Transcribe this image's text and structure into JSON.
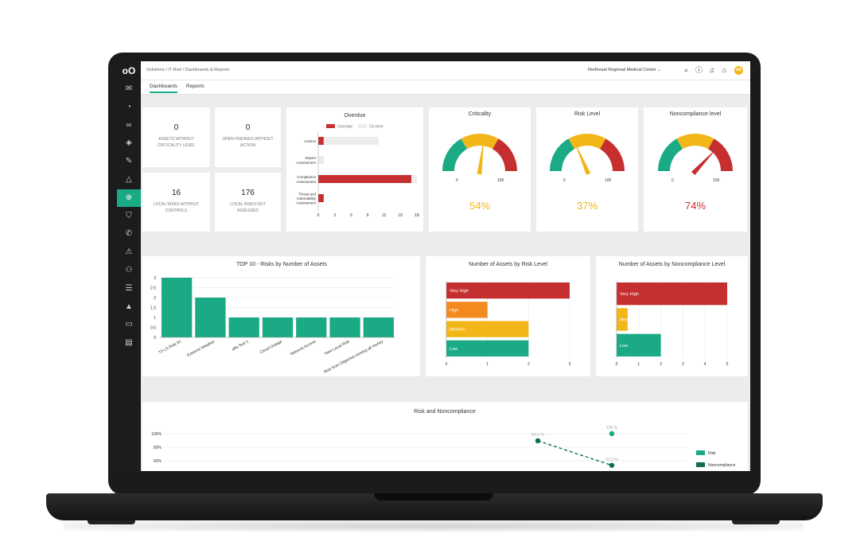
{
  "nav": {
    "logo": "oO",
    "icons": [
      "mail-icon",
      "dashboard-icon",
      "link-icon",
      "diamond-icon",
      "pen-icon",
      "warning-icon",
      "globe-icon",
      "shield-icon",
      "megaphone-icon",
      "alert-icon",
      "people-icon",
      "list-icon",
      "warning-filled-icon",
      "folder-icon",
      "document-icon"
    ],
    "active_index": 6
  },
  "header": {
    "breadcrumb": "Solutions  /  IT Risk  /  Dashboards & Reports",
    "organization": "Northeast Regional Medical Center  ⌄",
    "avatar": "AB"
  },
  "tabs": [
    {
      "label": "Dashboards",
      "active": true
    },
    {
      "label": "Reports",
      "active": false
    }
  ],
  "kpis": [
    {
      "value": "0",
      "label": "ASSETS WITHOUT CRITICALITY LEVEL"
    },
    {
      "value": "0",
      "label": "OPEN FINDINGS WITHOUT ACTION"
    },
    {
      "value": "16",
      "label": "LOCAL RISKS WITHOUT CONTROLS"
    },
    {
      "value": "176",
      "label": "LOCAL RISKS NOT ASSESSED"
    }
  ],
  "gauges": [
    {
      "title": "Criticality",
      "value": 54,
      "label": "54%",
      "min_label": "0",
      "max_label": "100",
      "color": "#f2b618"
    },
    {
      "title": "Risk Level",
      "value": 37,
      "label": "37%",
      "min_label": "0",
      "max_label": "100",
      "color": "#f2b618"
    },
    {
      "title": "Noncompliance level",
      "value": 74,
      "label": "74%",
      "min_label": "0",
      "max_label": "100",
      "color": "#c62f2f"
    }
  ],
  "colors": {
    "green": "#1aaa86",
    "yellow": "#f2b618",
    "red": "#c62f2f",
    "orange": "#f28a1e",
    "dark_green": "#0f6e52",
    "grey": "#ececec"
  },
  "chart_data": [
    {
      "id": "overdue",
      "type": "bar",
      "orientation": "horizontal",
      "title": "Overdue",
      "categories": [
        "Actions",
        "Impact Assessment",
        "Compliance Assessment",
        "Threat and Vulnerability Assessment"
      ],
      "series": [
        {
          "name": "Overdue",
          "color": "#c62f2f",
          "values": [
            1,
            0,
            17,
            1
          ]
        },
        {
          "name": "On time",
          "color": "#ececec",
          "values": [
            10,
            1,
            1,
            0
          ]
        }
      ],
      "xticks": [
        "0",
        "3",
        "6",
        "9",
        "12",
        "15",
        "18"
      ],
      "xlim": [
        0,
        18
      ]
    },
    {
      "id": "top10",
      "type": "bar",
      "title": "TOP 10 - Risks by Number of Assets",
      "categories": [
        "T5 LS Risk 01",
        "Extreme Weather",
        "alfa Test 1",
        "Cloud Outage",
        "Network Access",
        "New Local Risk",
        "Risk from Objective loosing all money"
      ],
      "values": [
        3,
        2,
        1,
        1,
        1,
        1,
        1
      ],
      "yticks": [
        "0",
        "0.5",
        "1",
        "1.5",
        "2",
        "2.5",
        "3"
      ],
      "ylim": [
        0,
        3
      ]
    },
    {
      "id": "risk-level",
      "type": "bar",
      "orientation": "horizontal",
      "title": "Number of Assets by Risk Level",
      "categories": [
        "Very High",
        "High",
        "Medium",
        "Low"
      ],
      "values": [
        3,
        1,
        2,
        2
      ],
      "colors": [
        "#c62f2f",
        "#f28a1e",
        "#f2b618",
        "#1aaa86"
      ],
      "xticks": [
        "0",
        "1",
        "2",
        "3"
      ],
      "xlim": [
        0,
        3
      ]
    },
    {
      "id": "noncompliance-level",
      "type": "bar",
      "orientation": "horizontal",
      "title": "Number of Assets by Noncompliance Level",
      "categories": [
        "Very High",
        "Medium",
        "Low"
      ],
      "values": [
        5,
        0.5,
        2
      ],
      "colors": [
        "#c62f2f",
        "#f2b618",
        "#1aaa86"
      ],
      "xticks": [
        "0",
        "1",
        "2",
        "3",
        "4",
        "5"
      ],
      "xlim": [
        0,
        5
      ]
    },
    {
      "id": "risk-noncompliance",
      "type": "line",
      "title": "Risk and Noncompliance",
      "yticks": [
        "100%",
        "80%",
        "60%"
      ],
      "series": [
        {
          "name": "Risk",
          "color": "#1aaa86",
          "points": [
            {
              "label": "100 %",
              "x": 2,
              "y": 100
            }
          ]
        },
        {
          "name": "Noncompliance",
          "color": "#0f6e52",
          "points": [
            {
              "label": "89.5 %",
              "x": 1,
              "y": 89.5
            },
            {
              "label": "53.2 %",
              "x": 2,
              "y": 53.2
            }
          ]
        }
      ]
    }
  ]
}
